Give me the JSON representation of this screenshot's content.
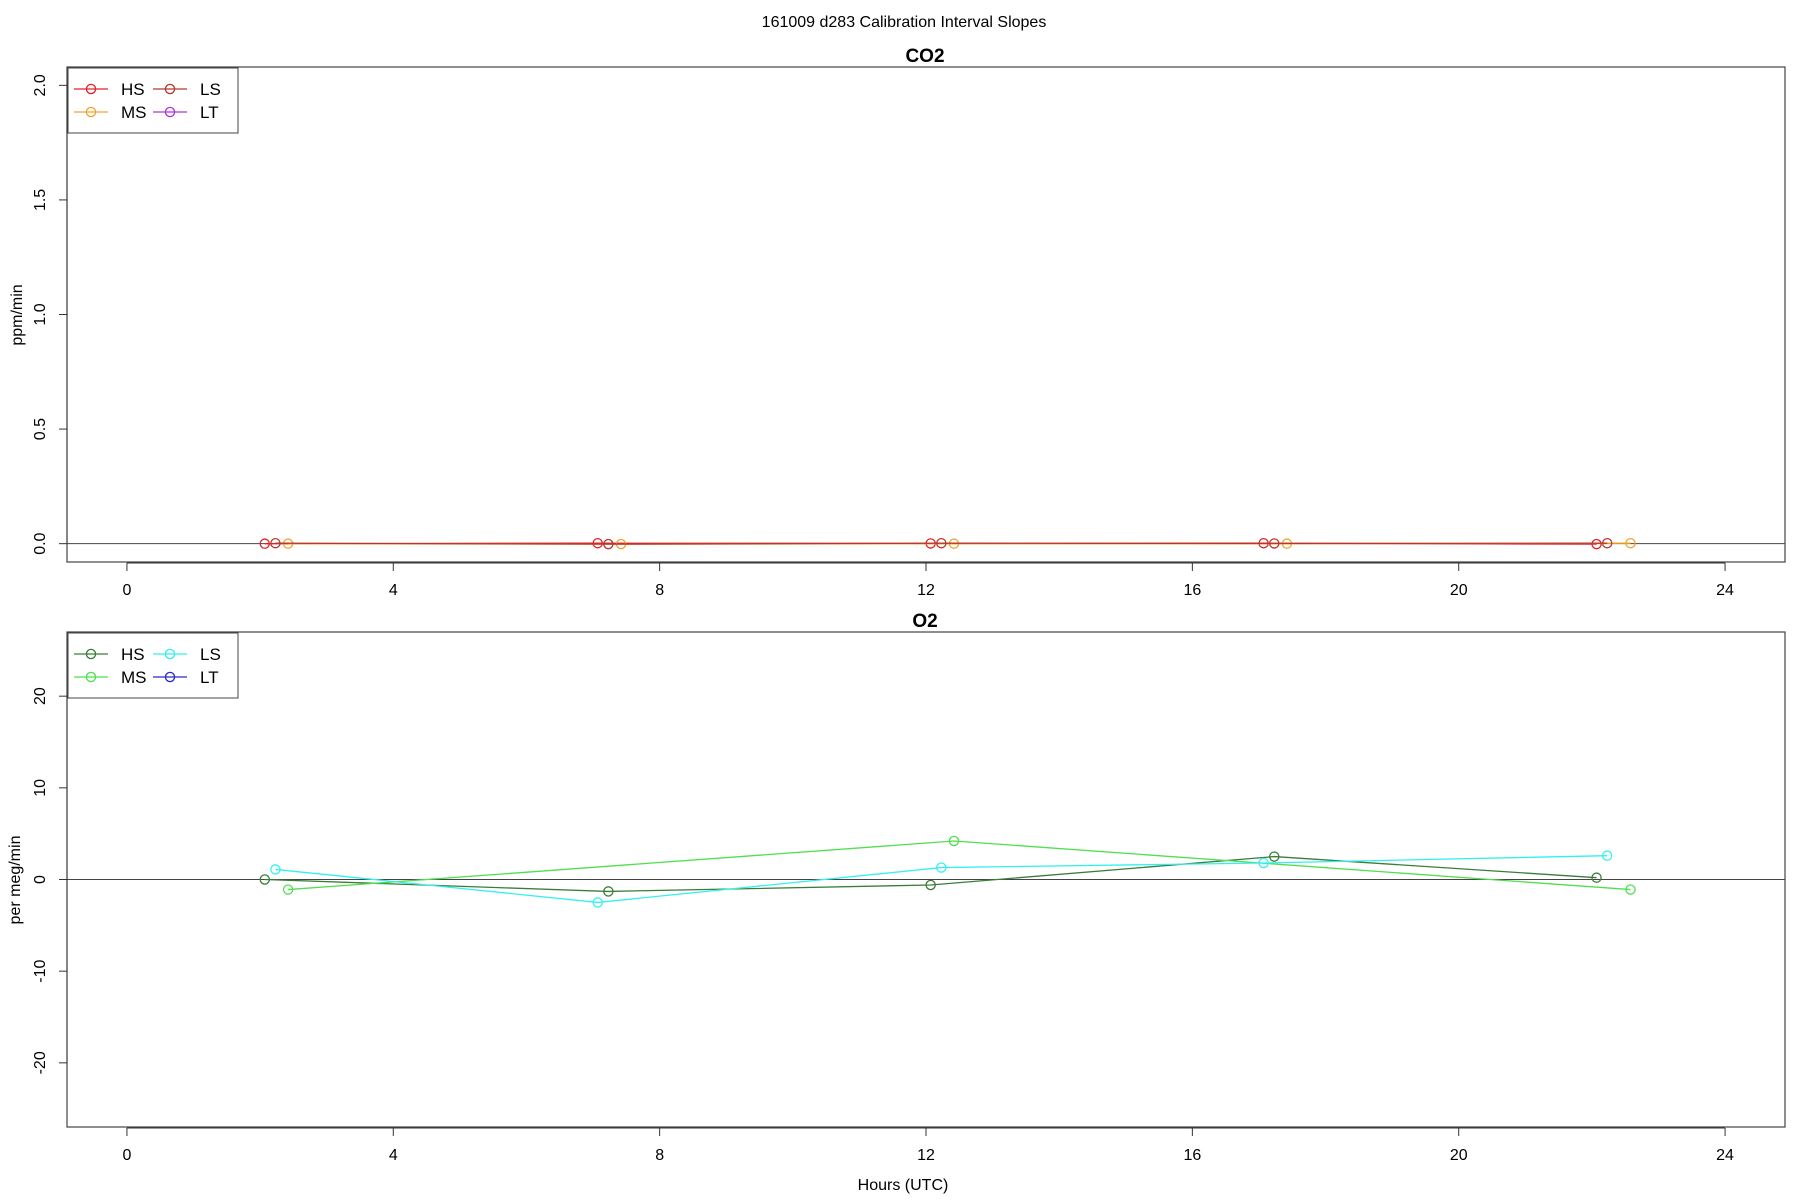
{
  "figure": {
    "title": "161009   d283   Calibration Interval Slopes"
  },
  "chart_data": [
    {
      "type": "line",
      "title": "CO2",
      "xlabel": "",
      "ylabel": "ppm/min",
      "xlim": [
        -0.9,
        24.9
      ],
      "ylim": [
        -0.08,
        2.08
      ],
      "xticks": [
        0,
        4,
        8,
        12,
        16,
        20,
        24
      ],
      "yticks": [
        0.0,
        0.5,
        1.0,
        1.5,
        2.0
      ],
      "ytick_labels": [
        "0.0",
        "0.5",
        "1.0",
        "1.5",
        "2.0"
      ],
      "hline": 0,
      "legend": {
        "placement": "top-left",
        "columns": 2
      },
      "series": [
        {
          "name": "HS",
          "color": "#e0212a",
          "x": [
            2.07,
            7.07,
            12.07,
            17.07,
            22.07
          ],
          "y": [
            0.0,
            0.002,
            0.001,
            0.002,
            -0.002
          ]
        },
        {
          "name": "MS",
          "color": "#f3a32b",
          "x": [
            2.42,
            7.42,
            12.42,
            17.42,
            22.58
          ],
          "y": [
            0.0,
            -0.002,
            0.0,
            0.0,
            0.002
          ]
        },
        {
          "name": "LS",
          "color": "#b5392b",
          "x": [
            2.23,
            7.23,
            12.23,
            17.23,
            22.23
          ],
          "y": [
            0.002,
            -0.002,
            0.002,
            0.001,
            0.002
          ]
        },
        {
          "name": "LT",
          "color": "#b135d8",
          "x": [],
          "y": []
        }
      ]
    },
    {
      "type": "line",
      "title": "O2",
      "xlabel": "Hours (UTC)",
      "ylabel": "per meg/min",
      "xlim": [
        -0.9,
        24.9
      ],
      "ylim": [
        -27,
        27
      ],
      "xticks": [
        0,
        4,
        8,
        12,
        16,
        20,
        24
      ],
      "yticks": [
        -20,
        -10,
        0,
        10,
        20
      ],
      "ytick_labels": [
        "-20",
        "-10",
        "0",
        "10",
        "20"
      ],
      "hline": 0,
      "legend": {
        "placement": "top-left",
        "columns": 2
      },
      "series": [
        {
          "name": "HS",
          "color": "#3a7d3a",
          "x": [
            2.07,
            7.23,
            12.07,
            17.23,
            22.07
          ],
          "y": [
            0.0,
            -1.3,
            -0.6,
            2.5,
            0.2
          ]
        },
        {
          "name": "MS",
          "color": "#4ee04e",
          "x": [
            2.42,
            12.42,
            22.58
          ],
          "y": [
            -1.1,
            4.2,
            -1.1
          ]
        },
        {
          "name": "LS",
          "color": "#33f0f0",
          "x": [
            2.23,
            7.07,
            12.23,
            17.07,
            22.23
          ],
          "y": [
            1.1,
            -2.5,
            1.3,
            1.8,
            2.6
          ]
        },
        {
          "name": "LT",
          "color": "#2a2ac8",
          "x": [],
          "y": []
        }
      ]
    }
  ]
}
